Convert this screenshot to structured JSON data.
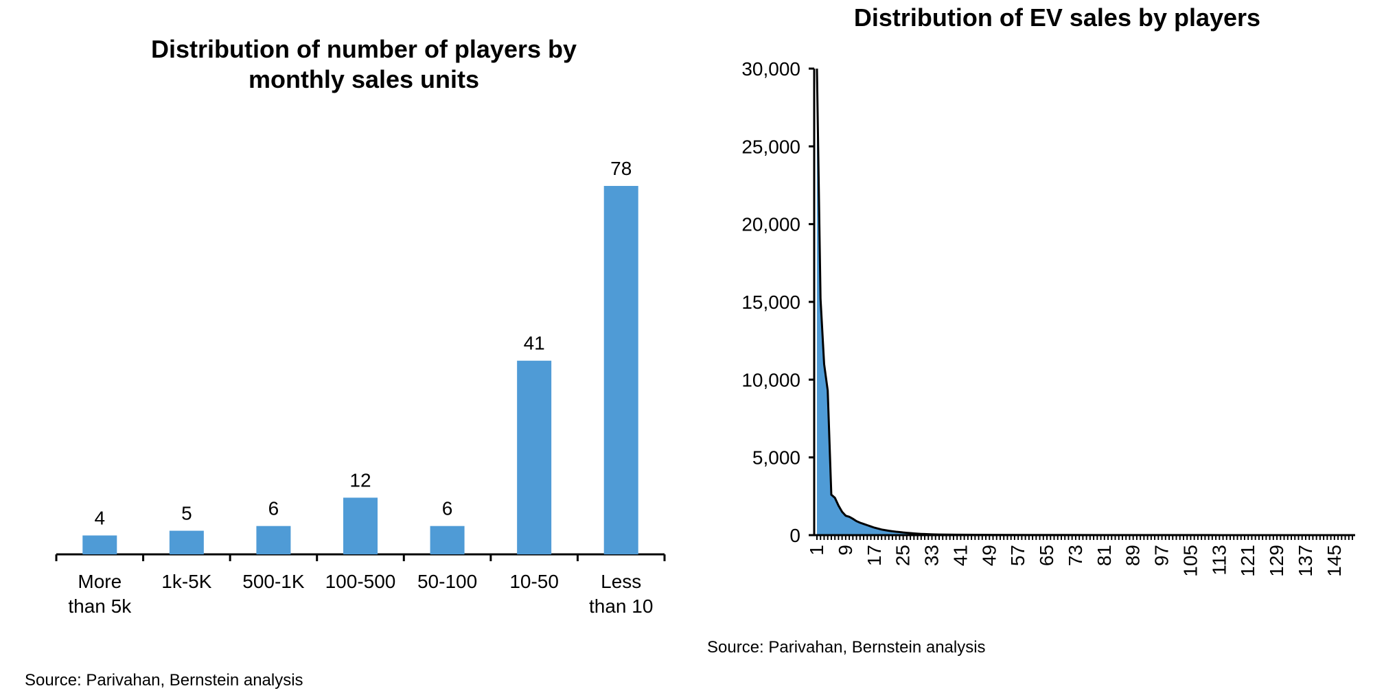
{
  "chart_data": [
    {
      "type": "bar",
      "title_lines": [
        "Distribution of number of players by",
        "monthly sales units"
      ],
      "categories": [
        [
          "More",
          "than 5k"
        ],
        [
          "1k-5K"
        ],
        [
          "500-1K"
        ],
        [
          "100-500"
        ],
        [
          "50-100"
        ],
        [
          "10-50"
        ],
        [
          "Less",
          "than 10"
        ]
      ],
      "values": [
        4,
        5,
        6,
        12,
        6,
        41,
        78
      ],
      "value_labels": [
        "4",
        "5",
        "6",
        "12",
        "6",
        "41",
        "78"
      ],
      "color": "#4f9bd6",
      "xlabel": "",
      "ylabel": "",
      "ylim": [
        0,
        80
      ],
      "source": "Source: Parivahan, Bernstein analysis"
    },
    {
      "type": "area",
      "title": "Distribution of EV sales by players",
      "x_range": [
        1,
        150
      ],
      "x_tick_labels": [
        "1",
        "9",
        "17",
        "25",
        "33",
        "41",
        "49",
        "57",
        "65",
        "73",
        "81",
        "89",
        "97",
        "105",
        "113",
        "121",
        "129",
        "137",
        "145"
      ],
      "y_tick_labels": [
        "0",
        "5,000",
        "10,000",
        "15,000",
        "20,000",
        "25,000",
        "30,000"
      ],
      "ylim": [
        0,
        30000
      ],
      "x": [
        1,
        2,
        3,
        4,
        5,
        6,
        7,
        8,
        9,
        10,
        11,
        12,
        13,
        14,
        15,
        16,
        17,
        18,
        19,
        20,
        21,
        22,
        23,
        24,
        25,
        26,
        27,
        28,
        29,
        30,
        31,
        32,
        33,
        34,
        35,
        40,
        45,
        50,
        60,
        70,
        80,
        90,
        100,
        110,
        120,
        130,
        140,
        150
      ],
      "y": [
        30000,
        15200,
        11000,
        9300,
        2600,
        2400,
        1900,
        1500,
        1250,
        1180,
        1050,
        900,
        800,
        720,
        640,
        560,
        480,
        420,
        360,
        320,
        280,
        250,
        220,
        200,
        170,
        150,
        130,
        110,
        95,
        80,
        70,
        60,
        50,
        45,
        40,
        30,
        22,
        18,
        12,
        9,
        7,
        5,
        4,
        3,
        2,
        2,
        1,
        1
      ],
      "fill_color": "#4f9bd6",
      "line_color": "#000000",
      "xlabel": "",
      "ylabel": "",
      "source": "Source: Parivahan, Bernstein analysis"
    }
  ]
}
